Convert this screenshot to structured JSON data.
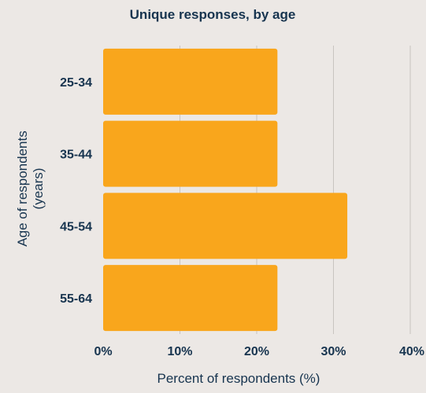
{
  "chart_data": {
    "type": "bar",
    "orientation": "horizontal",
    "title": "Unique responses, by age",
    "xlabel": "Percent of respondents (%)",
    "ylabel_lines": [
      "Age of respondents",
      "(years)"
    ],
    "categories": [
      "25-34",
      "35-44",
      "45-54",
      "55-64"
    ],
    "values": [
      22.7,
      22.7,
      31.8,
      22.7
    ],
    "xlim": [
      0,
      40
    ],
    "xticks": [
      "0%",
      "10%",
      "20%",
      "30%",
      "40%"
    ],
    "grid": true,
    "colors": {
      "bar": "#f9a61c",
      "title": "#17344f",
      "axis_text": "#17344f",
      "grid": "#c9c4c0",
      "background": "#ece8e5"
    }
  }
}
